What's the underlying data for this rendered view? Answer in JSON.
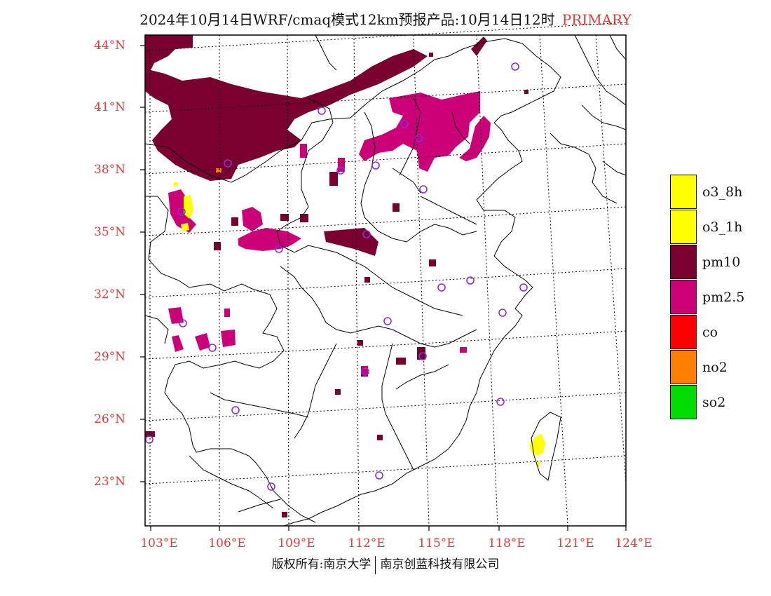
{
  "title": {
    "main": "2024年10月14日WRF/cmaq模式12km预报产品:10月14日12时",
    "tag": "PRIMARY"
  },
  "axes": {
    "lat_labels": [
      "44°N",
      "41°N",
      "38°N",
      "35°N",
      "32°N",
      "29°N",
      "26°N",
      "23°N"
    ],
    "lon_labels": [
      "103°E",
      "106°E",
      "109°E",
      "112°E",
      "115°E",
      "118°E",
      "121°E",
      "124°E"
    ]
  },
  "legend": [
    {
      "label": "o3_8h",
      "color": "#ffff00"
    },
    {
      "label": "o3_1h",
      "color": "#ffff00"
    },
    {
      "label": "pm10",
      "color": "#7a0030"
    },
    {
      "label": "pm2.5",
      "color": "#cc0077"
    },
    {
      "label": "co",
      "color": "#ff0000"
    },
    {
      "label": "no2",
      "color": "#ff7f00"
    },
    {
      "label": "so2",
      "color": "#00dd00"
    }
  ],
  "colors": {
    "station": "#8a2be2",
    "label": "#e23a3a"
  },
  "footer": {
    "left": "版权所有:南京大学",
    "right": "南京创蓝科技有限公司"
  }
}
